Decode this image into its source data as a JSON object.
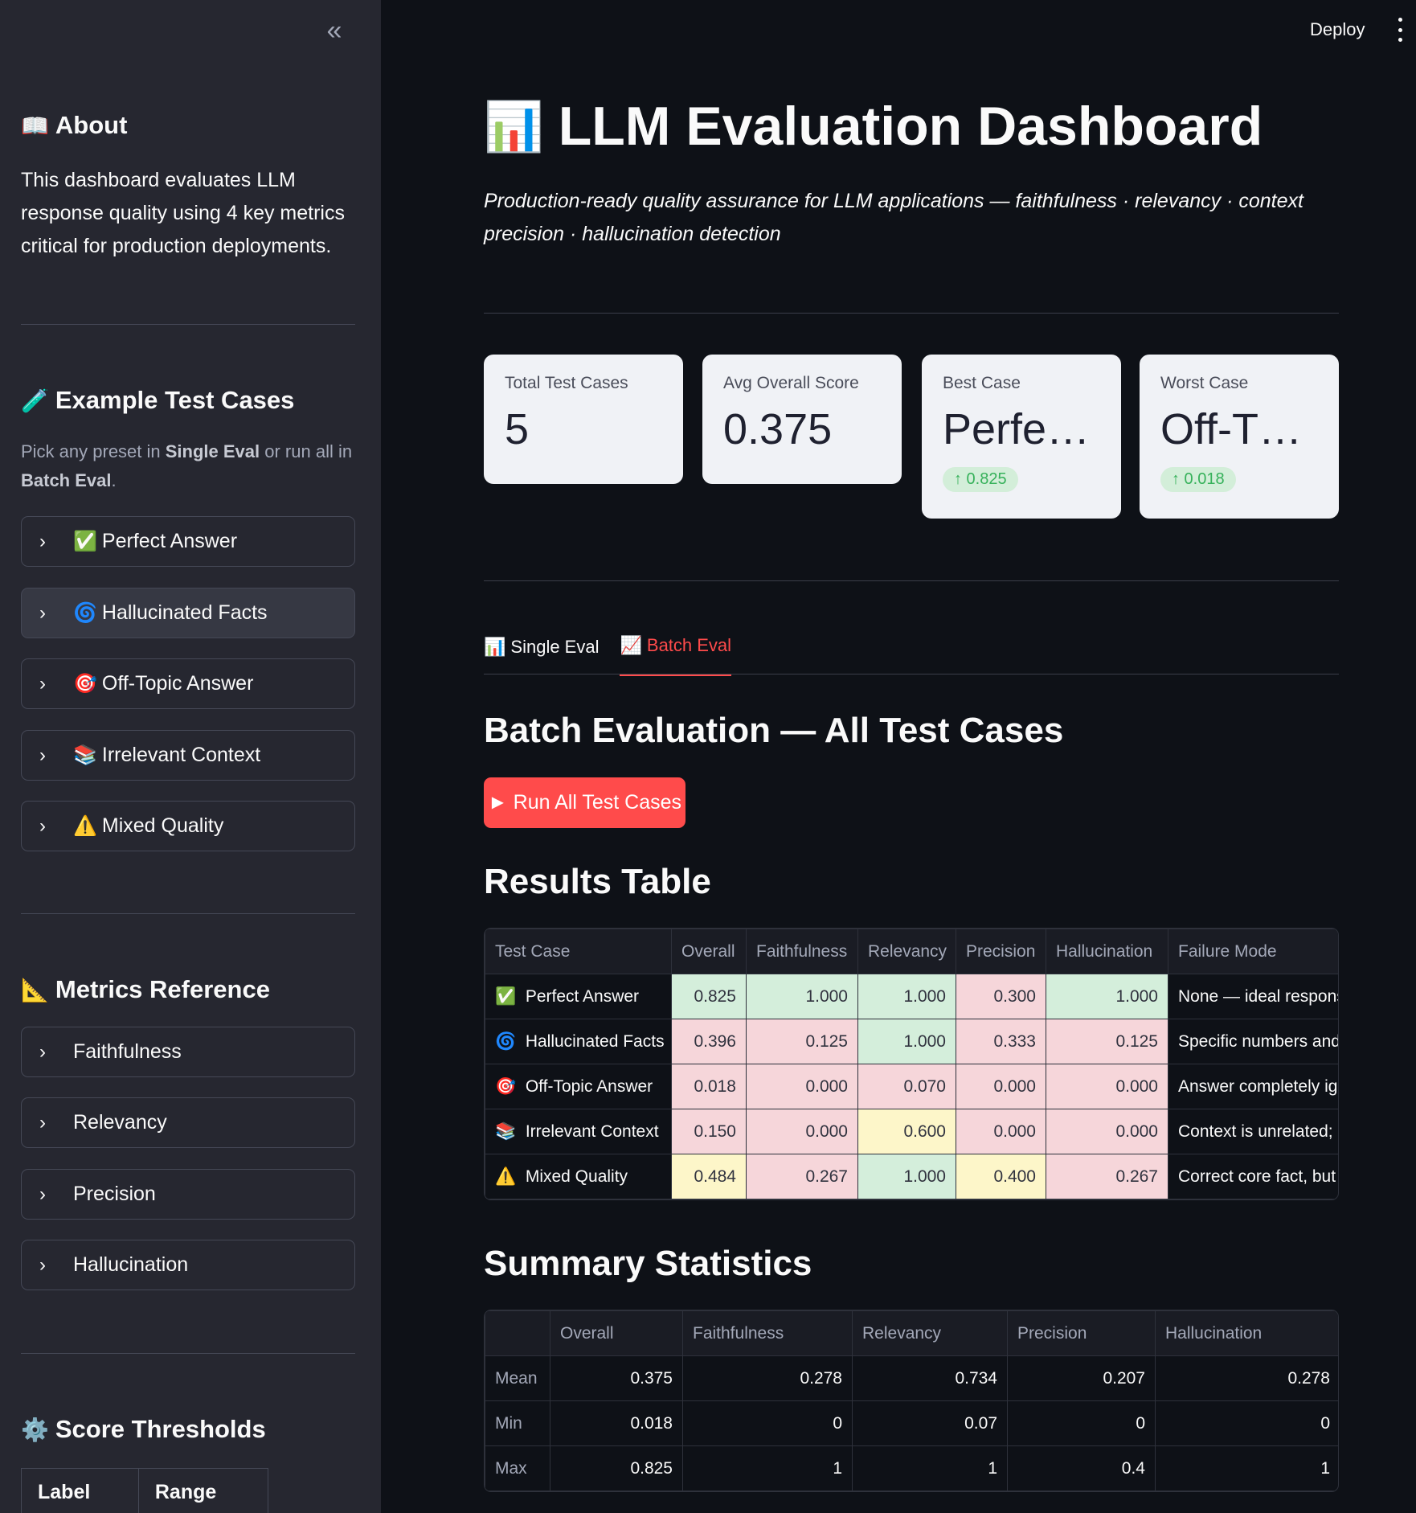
{
  "sidebar": {
    "collapse_icon": "double-chevron-left-icon",
    "about": {
      "icon": "📖",
      "title": "About",
      "text": "This dashboard evaluates LLM response quality using 4 key metrics critical for production deployments."
    },
    "examples": {
      "icon": "🧪",
      "title": "Example Test Cases",
      "caption_pre": "Pick any preset in ",
      "caption_b1": "Single Eval",
      "caption_mid": " or run all in ",
      "caption_b2": "Batch Eval",
      "caption_post": ".",
      "items": [
        {
          "icon": "✅",
          "label": "Perfect Answer"
        },
        {
          "icon": "🌀",
          "label": "Hallucinated Facts"
        },
        {
          "icon": "🎯",
          "label": "Off-Topic Answer"
        },
        {
          "icon": "📚",
          "label": "Irrelevant Context"
        },
        {
          "icon": "⚠️",
          "label": "Mixed Quality"
        }
      ]
    },
    "metrics_ref": {
      "icon": "📐",
      "title": "Metrics Reference",
      "items": [
        "Faithfulness",
        "Relevancy",
        "Precision",
        "Hallucination"
      ]
    },
    "thresholds": {
      "icon": "⚙️",
      "title": "Score Thresholds",
      "headers": [
        "Label",
        "Range"
      ]
    }
  },
  "topbar": {
    "deploy_label": "Deploy"
  },
  "header": {
    "icon": "📊",
    "title": "LLM Evaluation Dashboard",
    "subtitle": "Production-ready quality assurance for LLM applications — faithfulness · relevancy · context precision · hallucination detection"
  },
  "metrics": [
    {
      "label": "Total Test Cases",
      "value": "5",
      "delta": ""
    },
    {
      "label": "Avg Overall Score",
      "value": "0.375",
      "delta": ""
    },
    {
      "label": "Best Case",
      "value": "Perfe…",
      "delta": "↑ 0.825"
    },
    {
      "label": "Worst Case",
      "value": "Off-T…",
      "delta": "↑ 0.018"
    }
  ],
  "tabs": [
    {
      "icon": "📊",
      "label": "Single Eval",
      "active": false
    },
    {
      "icon": "📈",
      "label": "Batch Eval",
      "active": true
    }
  ],
  "batch": {
    "title": "Batch Evaluation — All Test Cases",
    "run_label": "► Run All Test Cases"
  },
  "results": {
    "title": "Results Table",
    "headers": [
      "Test Case",
      "Overall",
      "Faithfulness",
      "Relevancy",
      "Precision",
      "Hallucination",
      "Failure Mode"
    ],
    "rows": [
      {
        "icon": "✅",
        "name": "Perfect Answer",
        "overall": "0.825",
        "faith": "1.000",
        "rel": "1.000",
        "prec": "0.300",
        "hall": "1.000",
        "failure": "None — ideal response",
        "colors": [
          "g",
          "g",
          "g",
          "r",
          "g"
        ]
      },
      {
        "icon": "🌀",
        "name": "Hallucinated Facts",
        "overall": "0.396",
        "faith": "0.125",
        "rel": "1.000",
        "prec": "0.333",
        "hall": "0.125",
        "failure": "Specific numbers and dates",
        "colors": [
          "r",
          "r",
          "g",
          "r",
          "r"
        ]
      },
      {
        "icon": "🎯",
        "name": "Off-Topic Answer",
        "overall": "0.018",
        "faith": "0.000",
        "rel": "0.070",
        "prec": "0.000",
        "hall": "0.000",
        "failure": "Answer completely ignores the question",
        "colors": [
          "r",
          "r",
          "r",
          "r",
          "r"
        ]
      },
      {
        "icon": "📚",
        "name": "Irrelevant Context",
        "overall": "0.150",
        "faith": "0.000",
        "rel": "0.600",
        "prec": "0.000",
        "hall": "0.000",
        "failure": "Context is unrelated; answer",
        "colors": [
          "r",
          "r",
          "y",
          "r",
          "r"
        ]
      },
      {
        "icon": "⚠️",
        "name": "Mixed Quality",
        "overall": "0.484",
        "faith": "0.267",
        "rel": "1.000",
        "prec": "0.400",
        "hall": "0.267",
        "failure": "Correct core fact, but",
        "colors": [
          "y",
          "r",
          "g",
          "y",
          "r"
        ]
      }
    ]
  },
  "summary": {
    "title": "Summary Statistics",
    "headers": [
      "",
      "Overall",
      "Faithfulness",
      "Relevancy",
      "Precision",
      "Hallucination"
    ],
    "rows": [
      {
        "label": "Mean",
        "values": [
          "0.375",
          "0.278",
          "0.734",
          "0.207",
          "0.278"
        ]
      },
      {
        "label": "Min",
        "values": [
          "0.018",
          "0",
          "0.07",
          "0",
          "0"
        ]
      },
      {
        "label": "Max",
        "values": [
          "0.825",
          "1",
          "1",
          "0.4",
          "1"
        ]
      }
    ]
  }
}
